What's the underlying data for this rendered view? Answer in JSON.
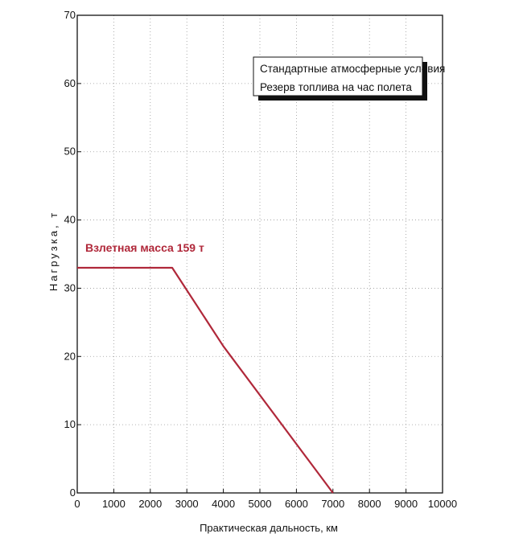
{
  "chart_data": {
    "type": "line",
    "title": "",
    "xlabel": "Практическая дальность, км",
    "ylabel": "Нагрузка, т",
    "xlim": [
      0,
      10000
    ],
    "ylim": [
      0,
      70
    ],
    "x_ticks": [
      0,
      1000,
      2000,
      3000,
      4000,
      5000,
      6000,
      7000,
      8000,
      9000,
      10000
    ],
    "y_ticks": [
      0,
      10,
      20,
      30,
      40,
      50,
      60,
      70
    ],
    "grid": true,
    "series": [
      {
        "name": "Взлетная масса 159 т",
        "color": "#b0283a",
        "points": [
          {
            "x": 0,
            "y": 33
          },
          {
            "x": 2600,
            "y": 33
          },
          {
            "x": 4000,
            "y": 21.5
          },
          {
            "x": 7000,
            "y": 0
          }
        ]
      }
    ],
    "legend_box": {
      "position": "top-right",
      "lines": [
        "Стандартные атмосферные условия",
        "Резерв топлива на час полета"
      ]
    }
  }
}
